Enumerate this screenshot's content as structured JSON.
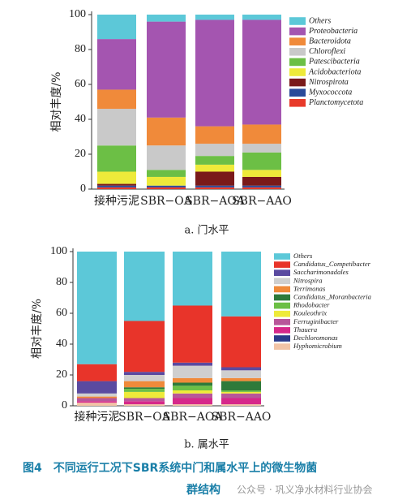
{
  "chart_data": [
    {
      "type": "stacked_bar",
      "caption": "a. 门水平",
      "ylabel": "相对丰度/%",
      "categories": [
        "接种污泥",
        "SBR−OA",
        "SBR−AOA",
        "SBR−AAO"
      ],
      "ylim": [
        0,
        100
      ],
      "yticks": [
        0,
        20,
        40,
        60,
        80,
        100
      ],
      "series": [
        {
          "name": "Others",
          "color": "#5cc8d8",
          "values": [
            14,
            4,
            3,
            3
          ]
        },
        {
          "name": "Proteobacteria",
          "color": "#a455b0",
          "values": [
            29,
            55,
            61,
            60
          ]
        },
        {
          "name": "Bacteroidota",
          "color": "#f08a3a",
          "values": [
            11,
            16,
            10,
            11
          ]
        },
        {
          "name": "Chloroflexi",
          "color": "#c9c9c9",
          "values": [
            21,
            14,
            7,
            5
          ]
        },
        {
          "name": "Patescibacteria",
          "color": "#6cbf45",
          "values": [
            15,
            4,
            5,
            10
          ]
        },
        {
          "name": "Acidobacteriota",
          "color": "#eeea3a",
          "values": [
            7,
            5,
            4,
            4
          ]
        },
        {
          "name": "Nitrospirota",
          "color": "#7a1a1a",
          "values": [
            1,
            0,
            8,
            5
          ]
        },
        {
          "name": "Myxococcota",
          "color": "#2a4a9a",
          "values": [
            1,
            1,
            1,
            1
          ]
        },
        {
          "name": "Planctomycetota",
          "color": "#e83a2a",
          "values": [
            1,
            1,
            1,
            1
          ]
        }
      ]
    },
    {
      "type": "stacked_bar",
      "caption": "b. 属水平",
      "ylabel": "相对丰度/%",
      "categories": [
        "接种污泥",
        "SBR−OA",
        "SBR−AOA",
        "SBR−AAO"
      ],
      "ylim": [
        0,
        100
      ],
      "yticks": [
        0,
        20,
        40,
        60,
        80,
        100
      ],
      "series": [
        {
          "name": "Others",
          "color": "#5cc8d8",
          "values": [
            73,
            45,
            35,
            42
          ]
        },
        {
          "name": "Candidatus_Competibacter",
          "color": "#e8342a",
          "values": [
            11,
            33,
            37,
            33
          ]
        },
        {
          "name": "Saccharimonadales",
          "color": "#5a4aa0",
          "values": [
            8,
            2,
            2,
            2
          ]
        },
        {
          "name": "Nitrospira",
          "color": "#cfcfcf",
          "values": [
            2,
            4,
            8,
            5
          ]
        },
        {
          "name": "Terrimonas",
          "color": "#f08a3a",
          "values": [
            1,
            4,
            3,
            2
          ]
        },
        {
          "name": "Candidatus_Moranbacteria",
          "color": "#2e7a3a",
          "values": [
            0,
            1,
            2,
            6
          ]
        },
        {
          "name": "Rhodobacter",
          "color": "#6cbf45",
          "values": [
            0,
            2,
            3,
            1
          ]
        },
        {
          "name": "Kouleothrix",
          "color": "#eeea3a",
          "values": [
            0,
            4,
            2,
            1
          ]
        },
        {
          "name": "Ferruginibacter",
          "color": "#b8569a",
          "values": [
            2,
            2,
            3,
            3
          ]
        },
        {
          "name": "Thauera",
          "color": "#d6288a",
          "values": [
            1,
            2,
            4,
            4
          ]
        },
        {
          "name": "Dechloromonas",
          "color": "#2a3a8a",
          "values": [
            0,
            0,
            0,
            0
          ]
        },
        {
          "name": "Hyphomicrobium",
          "color": "#f2c4a6",
          "values": [
            2,
            1,
            1,
            1
          ]
        }
      ]
    }
  ],
  "figure": {
    "caption_lines": [
      "图4　不同运行工况下SBR系统中门和属水平上的微生物菌",
      "群结构"
    ],
    "watermark": "公众号 · 巩义净水材料行业协会"
  }
}
